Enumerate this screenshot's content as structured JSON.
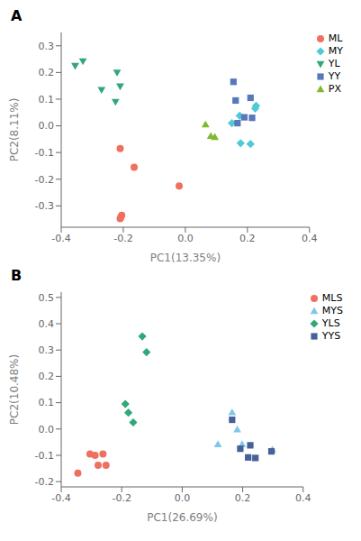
{
  "chart_data": [
    {
      "type": "scatter",
      "title": "A",
      "x_label": "PC1(13.35%)",
      "y_label": "PC2(8.11%)",
      "xlim": [
        -0.4,
        0.4
      ],
      "ylim": [
        -0.38,
        0.35
      ],
      "xticks": [
        -0.4,
        -0.2,
        {
          "value": 0.0,
          "label": "0.0"
        },
        0.2,
        0.4
      ],
      "yticks": [
        -0.3,
        -0.2,
        -0.1,
        {
          "value": 0.0,
          "label": "0.0"
        },
        0.1,
        0.2,
        0.3
      ],
      "legend": "upper right",
      "grid": false,
      "series": [
        {
          "name": "ML",
          "color": "#F07060",
          "marker": "circle",
          "x": [
            -0.21,
            -0.165,
            -0.02,
            -0.205,
            -0.21,
            -0.208
          ],
          "y": [
            -0.085,
            -0.155,
            -0.225,
            -0.335,
            -0.348,
            -0.342
          ]
        },
        {
          "name": "MY",
          "color": "#50C8D8",
          "marker": "diamond",
          "x": [
            0.15,
            0.175,
            0.178,
            0.21,
            0.225,
            0.228
          ],
          "y": [
            0.01,
            0.038,
            -0.065,
            -0.068,
            0.065,
            0.075
          ]
        },
        {
          "name": "YL",
          "color": "#30A878",
          "marker": "triangle-down",
          "x": [
            -0.355,
            -0.33,
            -0.27,
            -0.225,
            -0.22,
            -0.21
          ],
          "y": [
            0.225,
            0.242,
            0.135,
            0.09,
            0.2,
            0.148
          ]
        },
        {
          "name": "YY",
          "color": "#5878B8",
          "marker": "square",
          "x": [
            0.155,
            0.162,
            0.168,
            0.19,
            0.21,
            0.215
          ],
          "y": [
            0.165,
            0.095,
            0.01,
            0.032,
            0.105,
            0.03
          ]
        },
        {
          "name": "PX",
          "color": "#80B830",
          "marker": "triangle",
          "x": [
            0.065,
            0.082,
            0.095
          ],
          "y": [
            0.005,
            -0.038,
            -0.042
          ]
        }
      ]
    },
    {
      "type": "scatter",
      "title": "B",
      "x_label": "PC1(26.69%)",
      "y_label": "PC2(10.48%)",
      "xlim": [
        -0.4,
        0.4
      ],
      "ylim": [
        -0.22,
        0.52
      ],
      "xticks": [
        -0.4,
        -0.2,
        {
          "value": 0.0,
          "label": "0.0"
        },
        0.2,
        0.4
      ],
      "yticks": [
        -0.2,
        -0.1,
        {
          "value": 0.0,
          "label": "0.0"
        },
        0.1,
        0.2,
        0.3,
        0.4,
        0.5
      ],
      "legend": "upper right",
      "grid": false,
      "series": [
        {
          "name": "MLS",
          "color": "#F07060",
          "marker": "circle",
          "x": [
            -0.345,
            -0.305,
            -0.288,
            -0.278,
            -0.262,
            -0.252
          ],
          "y": [
            -0.168,
            -0.095,
            -0.1,
            -0.138,
            -0.095,
            -0.138
          ]
        },
        {
          "name": "MYS",
          "color": "#80C8E8",
          "marker": "triangle",
          "x": [
            0.118,
            0.165,
            0.182,
            0.198,
            0.298
          ],
          "y": [
            -0.058,
            0.063,
            -0.002,
            -0.058,
            -0.078
          ]
        },
        {
          "name": "YLS",
          "color": "#30A878",
          "marker": "diamond",
          "x": [
            -0.188,
            -0.178,
            -0.162,
            -0.132,
            -0.118
          ],
          "y": [
            0.095,
            0.062,
            0.025,
            0.352,
            0.292
          ]
        },
        {
          "name": "YYS",
          "color": "#486098",
          "marker": "square",
          "x": [
            0.165,
            0.192,
            0.218,
            0.225,
            0.242,
            0.295
          ],
          "y": [
            0.035,
            -0.075,
            -0.108,
            -0.062,
            -0.11,
            -0.085
          ]
        }
      ]
    }
  ]
}
